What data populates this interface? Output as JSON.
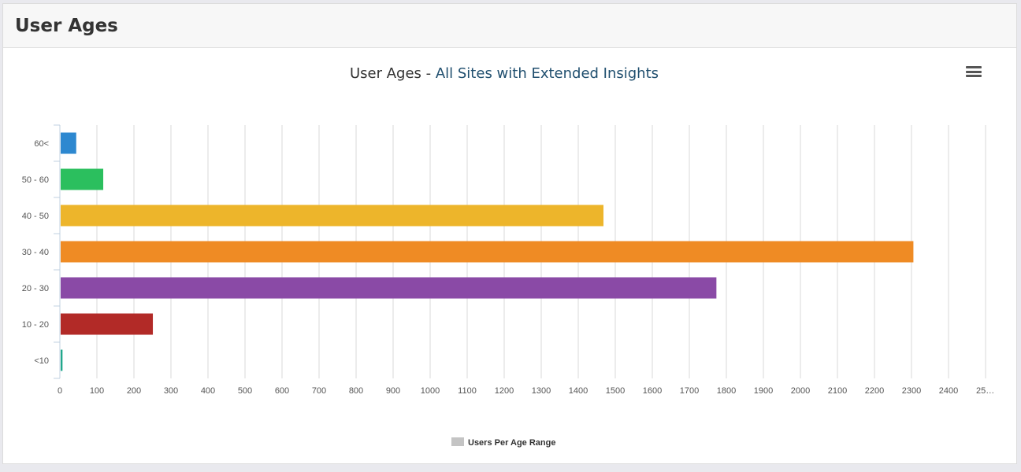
{
  "header": {
    "title": "User Ages"
  },
  "chart_data": {
    "type": "bar",
    "orientation": "horizontal",
    "title": "User Ages - ",
    "subtitle_link": "All Sites with Extended Insights",
    "categories": [
      "60<",
      "50 - 60",
      "40 - 50",
      "30 - 40",
      "20 - 30",
      "10 - 20",
      "<10"
    ],
    "values": [
      42,
      115,
      1466,
      2303,
      1771,
      249,
      5
    ],
    "colors": [
      "#2d88d0",
      "#2bbf5e",
      "#edb52b",
      "#ef8b24",
      "#8a4aa6",
      "#b22a27",
      "#22a88c"
    ],
    "xlim": [
      0,
      2500
    ],
    "xticks": [
      "0",
      "100",
      "200",
      "300",
      "400",
      "500",
      "600",
      "700",
      "800",
      "900",
      "1000",
      "1100",
      "1200",
      "1300",
      "1400",
      "1500",
      "1600",
      "1700",
      "1800",
      "1900",
      "2000",
      "2100",
      "2200",
      "2300",
      "2400",
      "25…"
    ],
    "grid": true,
    "legend": {
      "label": "Users Per Age Range",
      "color": "#c4c4c4",
      "position": "bottom-center"
    },
    "xlabel": "",
    "ylabel": ""
  }
}
